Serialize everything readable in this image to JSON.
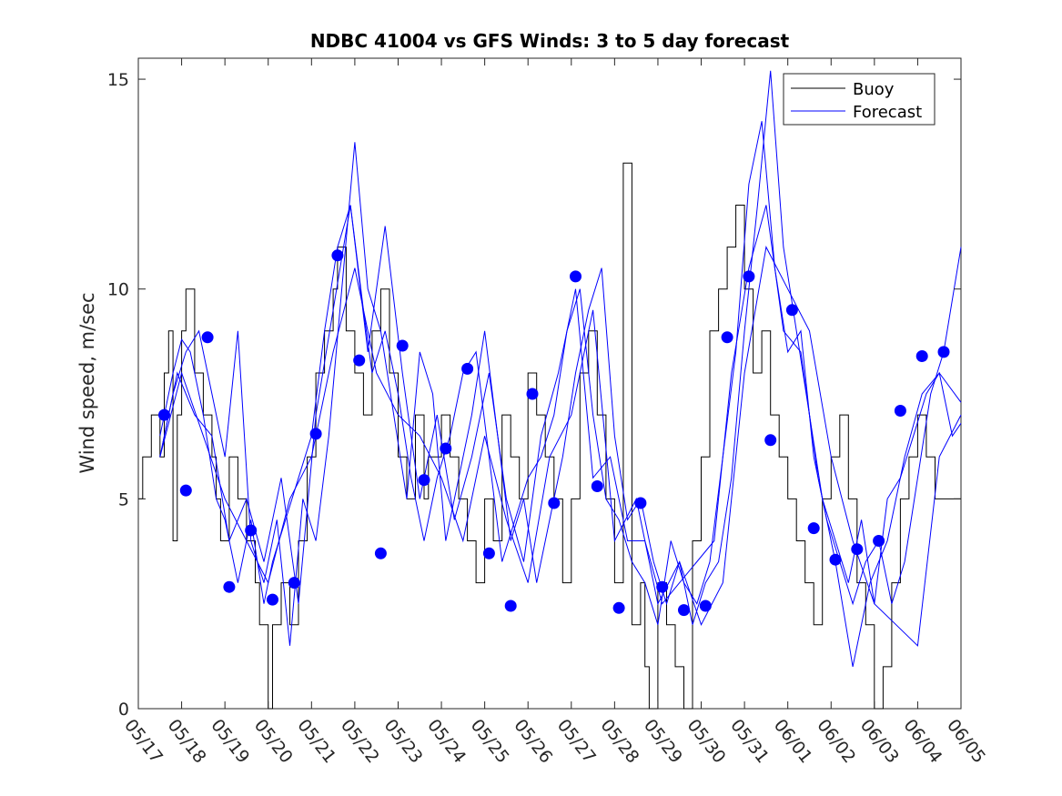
{
  "chart_data": {
    "type": "line",
    "title": "NDBC 41004 vs GFS Winds: 3 to 5 day forecast",
    "xlabel": "",
    "ylabel": "Wind speed, m/sec",
    "ylim": [
      0,
      15.5
    ],
    "yticks": [
      0,
      5,
      10,
      15
    ],
    "xlim_days": [
      0,
      19
    ],
    "xtick_labels": [
      "05/17",
      "05/18",
      "05/19",
      "05/20",
      "05/21",
      "05/22",
      "05/23",
      "05/24",
      "05/25",
      "05/26",
      "05/27",
      "05/28",
      "05/29",
      "05/30",
      "05/31",
      "06/01",
      "06/02",
      "06/03",
      "06/04",
      "06/05"
    ],
    "grid": false,
    "legend": {
      "position": "top-right",
      "entries": [
        "Buoy",
        "Forecast"
      ]
    },
    "colors": {
      "buoy": "#000000",
      "forecast": "#0000ff",
      "marker": "#0000ff"
    },
    "buoy_series": {
      "name": "Buoy",
      "x_day": [
        0.0,
        0.1,
        0.3,
        0.5,
        0.6,
        0.7,
        0.8,
        0.9,
        1.0,
        1.1,
        1.3,
        1.5,
        1.7,
        1.8,
        1.9,
        2.1,
        2.3,
        2.5,
        2.7,
        2.8,
        3.0,
        3.1,
        3.3,
        3.5,
        3.7,
        3.9,
        4.1,
        4.3,
        4.5,
        4.6,
        4.8,
        5.0,
        5.2,
        5.4,
        5.6,
        5.8,
        6.0,
        6.2,
        6.4,
        6.6,
        6.7,
        6.8,
        7.0,
        7.2,
        7.4,
        7.6,
        7.8,
        8.0,
        8.2,
        8.4,
        8.6,
        8.8,
        9.0,
        9.2,
        9.4,
        9.6,
        9.8,
        10.0,
        10.2,
        10.4,
        10.6,
        10.8,
        11.0,
        11.2,
        11.4,
        11.6,
        11.7,
        11.8,
        12.0,
        12.2,
        12.4,
        12.6,
        12.8,
        13.0,
        13.2,
        13.4,
        13.6,
        13.8,
        14.0,
        14.2,
        14.4,
        14.6,
        14.8,
        15.0,
        15.2,
        15.4,
        15.6,
        15.8,
        16.0,
        16.2,
        16.4,
        16.6,
        16.8,
        17.0,
        17.2,
        17.4,
        17.6,
        17.8,
        18.0,
        18.2,
        18.4,
        18.6,
        18.8,
        19.0
      ],
      "y": [
        5,
        6,
        7,
        6,
        8,
        9,
        4,
        7,
        9,
        10,
        8,
        7,
        6,
        5,
        4,
        6,
        5,
        4,
        3,
        2,
        0,
        2,
        3,
        2,
        4,
        6,
        8,
        9,
        10,
        11,
        9,
        8,
        7,
        9,
        10,
        8,
        6,
        5,
        7,
        5,
        6,
        6,
        7,
        6,
        5,
        4,
        3,
        5,
        4,
        7,
        6,
        5,
        8,
        7,
        6,
        5,
        3,
        5,
        8,
        9,
        7,
        5,
        3,
        13,
        2,
        3,
        1,
        0,
        3,
        2,
        1,
        0,
        4,
        6,
        9,
        10,
        11,
        12,
        10,
        8,
        9,
        7,
        6,
        5,
        4,
        3,
        2,
        5,
        6,
        7,
        5,
        3,
        2,
        0,
        1,
        3,
        5,
        6,
        7,
        6,
        5,
        5,
        5,
        5
      ]
    },
    "forecast_series": [
      {
        "x_day": [
          0.5,
          0.8,
          1.0,
          1.2,
          1.5,
          1.8,
          2.0,
          2.3,
          2.6,
          2.9,
          3.1,
          3.4,
          3.7,
          4.0,
          4.3,
          4.6,
          4.9,
          5.2,
          5.4,
          5.7,
          6.0,
          6.3,
          6.6,
          6.9,
          7.2,
          7.5,
          7.8,
          8.1,
          8.4,
          8.7,
          9.0,
          9.3,
          9.6,
          9.9,
          10.2,
          10.5,
          10.8,
          11.1,
          11.4,
          11.7,
          12.0,
          12.3,
          12.6,
          12.9,
          13.2,
          13.5,
          13.8,
          14.1,
          14.4,
          14.7,
          15.0,
          15.3,
          15.6,
          15.9,
          16.2,
          16.5,
          16.8,
          17.1,
          17.4,
          17.7,
          18.0,
          18.3,
          18.6,
          19.0
        ],
        "y": [
          6.5,
          8.0,
          8.8,
          8.5,
          7.0,
          5.0,
          4.5,
          3.0,
          4.5,
          2.5,
          3.5,
          4.5,
          5.5,
          6.5,
          9.0,
          11.0,
          12.0,
          9.5,
          8.0,
          9.0,
          7.5,
          5.5,
          4.0,
          5.5,
          6.5,
          8.0,
          8.5,
          6.0,
          3.5,
          4.5,
          5.5,
          6.0,
          7.0,
          9.0,
          10.0,
          7.0,
          5.0,
          4.5,
          3.5,
          3.0,
          2.0,
          4.0,
          3.0,
          2.5,
          3.5,
          6.0,
          8.5,
          12.5,
          14.0,
          10.5,
          8.5,
          9.0,
          6.0,
          4.5,
          3.5,
          2.5,
          3.5,
          4.0,
          2.5,
          3.5,
          5.5,
          7.5,
          8.5,
          11.0
        ]
      },
      {
        "x_day": [
          0.5,
          0.8,
          1.1,
          1.4,
          1.7,
          2.0,
          2.3,
          2.6,
          2.9,
          3.2,
          3.5,
          3.8,
          4.1,
          4.4,
          4.7,
          5.0,
          5.3,
          5.6,
          5.9,
          6.2,
          6.5,
          6.8,
          7.1,
          7.4,
          7.7,
          8.0,
          8.3,
          8.6,
          8.9,
          9.2,
          9.5,
          9.8,
          10.1,
          10.4,
          10.7,
          11.0,
          11.3,
          11.6,
          11.9,
          12.2,
          12.5,
          12.8,
          13.1,
          13.4,
          13.7,
          14.0,
          14.3,
          14.6,
          14.9,
          15.2,
          15.5,
          15.8,
          16.1,
          16.4,
          16.7,
          17.0,
          17.3,
          17.6,
          17.9,
          18.2,
          18.5,
          18.8,
          19.0
        ],
        "y": [
          6.0,
          7.5,
          8.5,
          9.0,
          7.5,
          6.0,
          9.0,
          4.0,
          3.0,
          4.5,
          1.5,
          5.0,
          4.0,
          6.5,
          10.0,
          13.5,
          10.0,
          9.0,
          7.0,
          5.0,
          8.5,
          7.5,
          4.0,
          5.5,
          7.0,
          9.0,
          6.5,
          4.0,
          5.0,
          3.0,
          4.5,
          6.0,
          8.0,
          9.5,
          10.5,
          6.5,
          4.5,
          5.0,
          3.5,
          2.5,
          3.5,
          2.0,
          3.0,
          3.5,
          5.5,
          9.0,
          12.0,
          15.2,
          11.0,
          9.0,
          7.0,
          5.0,
          4.0,
          3.0,
          4.5,
          2.5,
          5.0,
          5.5,
          6.5,
          7.5,
          8.0,
          6.5,
          6.8
        ]
      },
      {
        "x_day": [
          0.5,
          0.9,
          1.3,
          1.7,
          2.1,
          2.5,
          2.9,
          3.3,
          3.7,
          4.1,
          4.5,
          4.9,
          5.3,
          5.7,
          6.1,
          6.5,
          6.9,
          7.3,
          7.7,
          8.1,
          8.5,
          8.9,
          9.3,
          9.7,
          10.1,
          10.5,
          10.9,
          11.3,
          11.7,
          12.1,
          12.5,
          12.9,
          13.3,
          13.7,
          14.1,
          14.5,
          14.9,
          15.3,
          15.7,
          16.1,
          16.5,
          16.9,
          17.3,
          17.7,
          18.1,
          18.5,
          19.0
        ],
        "y": [
          6.0,
          8.0,
          7.0,
          6.5,
          4.0,
          5.0,
          3.5,
          5.5,
          2.5,
          7.0,
          9.5,
          12.0,
          8.5,
          11.5,
          8.0,
          5.0,
          7.0,
          4.5,
          6.0,
          8.0,
          5.0,
          3.5,
          6.5,
          8.0,
          10.0,
          5.5,
          6.0,
          4.0,
          4.0,
          2.5,
          3.0,
          3.5,
          4.0,
          8.0,
          10.5,
          12.0,
          9.0,
          8.5,
          5.5,
          3.5,
          1.0,
          3.0,
          4.0,
          6.0,
          7.5,
          8.0,
          7.3
        ]
      },
      {
        "x_day": [
          0.5,
          1.0,
          1.5,
          2.0,
          2.5,
          3.0,
          3.5,
          4.0,
          4.5,
          5.0,
          5.5,
          6.0,
          6.5,
          7.0,
          7.5,
          8.0,
          8.5,
          9.0,
          9.5,
          10.0,
          10.5,
          11.0,
          11.5,
          12.0,
          12.5,
          13.0,
          13.5,
          14.0,
          14.5,
          15.0,
          15.5,
          16.0,
          16.5,
          17.0,
          17.5,
          18.0,
          18.5,
          19.0
        ],
        "y": [
          6.0,
          8.0,
          6.5,
          5.0,
          4.0,
          3.0,
          5.0,
          6.0,
          8.5,
          10.5,
          8.0,
          7.0,
          6.5,
          5.5,
          4.0,
          6.5,
          4.5,
          3.0,
          6.0,
          7.0,
          9.5,
          4.0,
          5.0,
          2.5,
          3.5,
          2.0,
          3.0,
          8.0,
          11.0,
          10.0,
          9.0,
          6.0,
          4.0,
          2.5,
          2.0,
          1.5,
          6.0,
          7.0
        ]
      }
    ],
    "markers": {
      "name": "Forecast",
      "x_day": [
        0.6,
        1.1,
        1.6,
        2.1,
        2.6,
        3.1,
        3.6,
        4.1,
        4.6,
        5.1,
        5.6,
        6.1,
        6.6,
        7.1,
        7.6,
        8.1,
        8.6,
        9.1,
        9.6,
        10.1,
        10.6,
        11.1,
        11.6,
        12.1,
        12.6,
        13.1,
        13.6,
        14.1,
        14.6,
        15.1,
        15.6,
        16.1,
        16.6,
        17.1,
        17.6,
        18.1,
        18.6
      ],
      "y": [
        7.0,
        5.2,
        8.85,
        2.9,
        4.25,
        2.6,
        3.0,
        6.55,
        10.8,
        8.3,
        3.7,
        8.65,
        5.45,
        6.2,
        8.1,
        3.7,
        2.45,
        7.5,
        4.9,
        10.3,
        5.3,
        2.4,
        4.9,
        2.9,
        2.35,
        2.45,
        8.85,
        10.3,
        6.4,
        9.5,
        4.3,
        3.55,
        3.8,
        4.0,
        7.1,
        8.4,
        8.5
      ]
    }
  }
}
